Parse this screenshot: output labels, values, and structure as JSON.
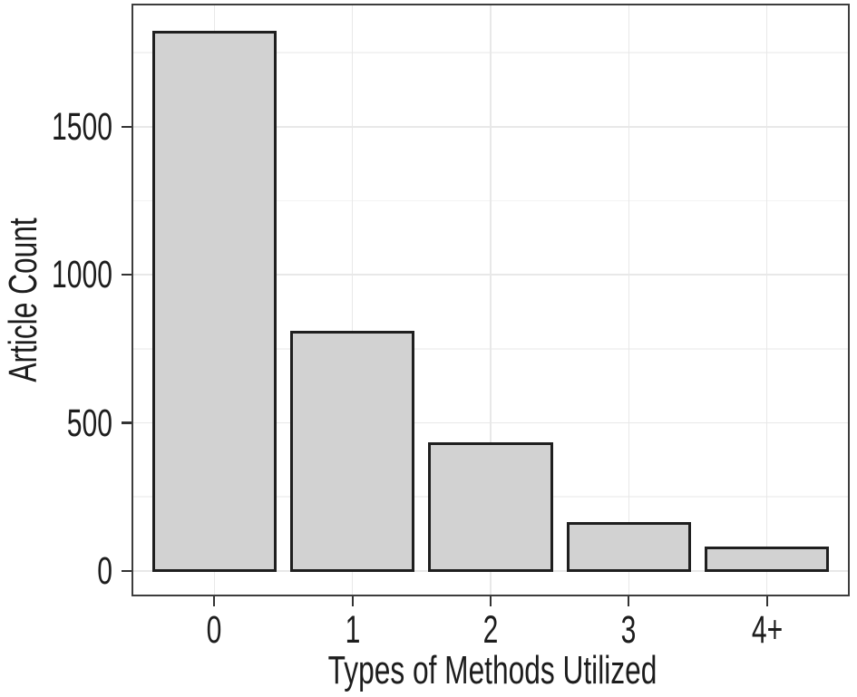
{
  "chart_data": {
    "type": "bar",
    "title": "",
    "xlabel": "Types of Methods Utilized",
    "ylabel": "Article Count",
    "categories": [
      "0",
      "1",
      "2",
      "3",
      "4+"
    ],
    "values": [
      1820,
      805,
      430,
      160,
      78
    ],
    "yticks_major": [
      0,
      500,
      1000,
      1500
    ],
    "yticks_minor": [
      250,
      750,
      1250,
      1750
    ],
    "ylim": [
      -86,
      1916
    ],
    "bar_width_fraction": 0.9,
    "legend": "none",
    "grid": "horizontal major+minor, vertical major at category centers",
    "colors": {
      "background": "#ffffff",
      "bar_fill": "#d2d2d2",
      "bar_border": "#1f1f1f",
      "panel_border": "#3d3d3d",
      "grid_major": "#e8e8e8",
      "grid_minor": "#f3f3f3",
      "tick": "#333333",
      "text": "#1d1d1d"
    }
  }
}
